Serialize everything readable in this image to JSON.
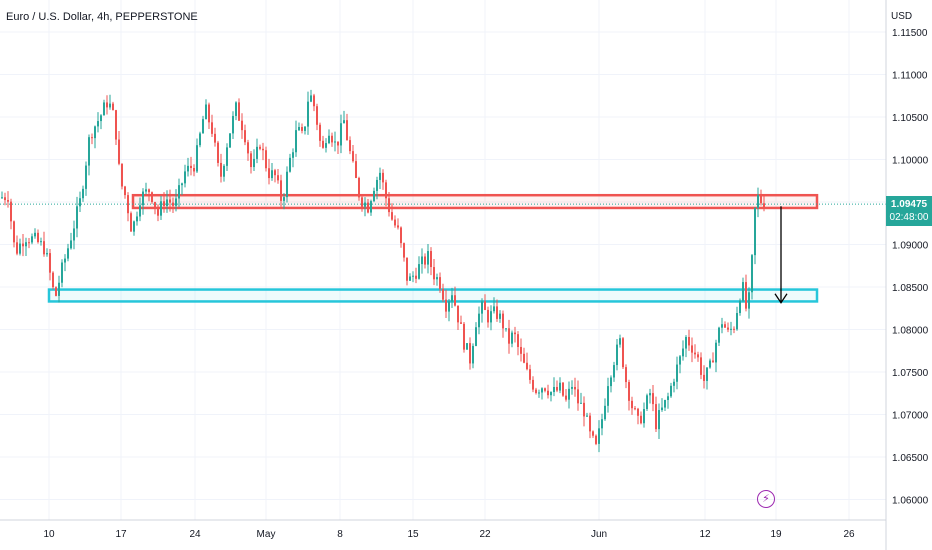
{
  "header": {
    "symbol_title": "Euro / U.S. Dollar, 4h, PEPPERSTONE",
    "currency": "USD"
  },
  "last_price": {
    "price": "1.09475",
    "countdown": "02:48:00",
    "color": "#26a69a"
  },
  "colors": {
    "up": "#26a69a",
    "down": "#ef5350",
    "resistance_zone": "#ef5350",
    "support_zone": "#26c6da",
    "grid": "#f0f3fa"
  },
  "icons": {
    "alert": "lightning-icon"
  },
  "chart_data": {
    "type": "candlestick",
    "timeframe": "4h",
    "y_ticks": [
      1.115,
      1.11,
      1.105,
      1.1,
      1.095,
      1.09,
      1.085,
      1.08,
      1.075,
      1.07,
      1.065,
      1.06
    ],
    "y_tick_labels": [
      "1.11500",
      "1.11000",
      "1.10500",
      "1.10000",
      "1.09500",
      "1.09000",
      "1.08500",
      "1.08000",
      "1.07500",
      "1.07000",
      "1.06500",
      "1.06000"
    ],
    "ylim": [
      1.0565,
      1.1175
    ],
    "x_ticks": [
      "10",
      "17",
      "24",
      "May",
      "8",
      "15",
      "22",
      "Jun",
      "12",
      "19",
      "26"
    ],
    "series_path": [
      [
        0,
        1.0955
      ],
      [
        8,
        1.0958
      ],
      [
        15,
        1.089
      ],
      [
        25,
        1.091
      ],
      [
        35,
        1.0905
      ],
      [
        45,
        1.0895
      ],
      [
        55,
        1.0835
      ],
      [
        60,
        1.0862
      ],
      [
        70,
        1.0905
      ],
      [
        80,
        1.095
      ],
      [
        90,
        1.103
      ],
      [
        100,
        1.105
      ],
      [
        108,
        1.107
      ],
      [
        115,
        1.1045
      ],
      [
        120,
        1.0975
      ],
      [
        126,
        1.0955
      ],
      [
        132,
        1.0915
      ],
      [
        140,
        1.0955
      ],
      [
        150,
        1.0965
      ],
      [
        158,
        1.0935
      ],
      [
        165,
        1.0955
      ],
      [
        175,
        1.0945
      ],
      [
        185,
        1.0985
      ],
      [
        195,
        1.0995
      ],
      [
        205,
        1.106
      ],
      [
        212,
        1.1035
      ],
      [
        220,
        1.0975
      ],
      [
        228,
        1.1025
      ],
      [
        236,
        1.106
      ],
      [
        244,
        1.1035
      ],
      [
        252,
        1.0985
      ],
      [
        260,
        1.102
      ],
      [
        268,
        1.0985
      ],
      [
        275,
        1.098
      ],
      [
        282,
        1.095
      ],
      [
        290,
        1.1
      ],
      [
        297,
        1.1035
      ],
      [
        303,
        1.1025
      ],
      [
        309,
        1.108
      ],
      [
        315,
        1.106
      ],
      [
        322,
        1.1005
      ],
      [
        328,
        1.104
      ],
      [
        336,
        1.1015
      ],
      [
        344,
        1.1045
      ],
      [
        352,
        1.0995
      ],
      [
        360,
        1.0955
      ],
      [
        368,
        1.0945
      ],
      [
        374,
        1.097
      ],
      [
        380,
        1.0985
      ],
      [
        386,
        1.0955
      ],
      [
        392,
        1.093
      ],
      [
        398,
        1.0915
      ],
      [
        404,
        1.088
      ],
      [
        408,
        1.0855
      ],
      [
        414,
        1.0865
      ],
      [
        420,
        1.0875
      ],
      [
        428,
        1.0885
      ],
      [
        434,
        1.0865
      ],
      [
        440,
        1.0855
      ],
      [
        446,
        1.083
      ],
      [
        452,
        1.0845
      ],
      [
        458,
        1.0815
      ],
      [
        464,
        1.0785
      ],
      [
        470,
        1.0765
      ],
      [
        476,
        1.081
      ],
      [
        482,
        1.0825
      ],
      [
        488,
        1.0815
      ],
      [
        496,
        1.082
      ],
      [
        502,
        1.081
      ],
      [
        508,
        1.0785
      ],
      [
        514,
        1.0795
      ],
      [
        520,
        1.077
      ],
      [
        528,
        1.0745
      ],
      [
        536,
        1.073
      ],
      [
        544,
        1.0735
      ],
      [
        552,
        1.0725
      ],
      [
        560,
        1.073
      ],
      [
        566,
        1.0715
      ],
      [
        572,
        1.0735
      ],
      [
        578,
        1.0715
      ],
      [
        584,
        1.0705
      ],
      [
        590,
        1.0675
      ],
      [
        596,
        1.066
      ],
      [
        602,
        1.0695
      ],
      [
        608,
        1.074
      ],
      [
        614,
        1.0765
      ],
      [
        620,
        1.0785
      ],
      [
        626,
        1.074
      ],
      [
        632,
        1.071
      ],
      [
        638,
        1.069
      ],
      [
        644,
        1.0705
      ],
      [
        650,
        1.0725
      ],
      [
        656,
        1.069
      ],
      [
        662,
        1.0705
      ],
      [
        668,
        1.072
      ],
      [
        674,
        1.0745
      ],
      [
        680,
        1.0765
      ],
      [
        686,
        1.079
      ],
      [
        692,
        1.078
      ],
      [
        698,
        1.0765
      ],
      [
        704,
        1.074
      ],
      [
        710,
        1.0755
      ],
      [
        716,
        1.0785
      ],
      [
        722,
        1.081
      ],
      [
        728,
        1.0795
      ],
      [
        734,
        1.0805
      ],
      [
        738,
        1.083
      ],
      [
        742,
        1.0855
      ],
      [
        746,
        1.0825
      ],
      [
        749,
        1.0835
      ],
      [
        752,
        1.088
      ],
      [
        755,
        1.094
      ],
      [
        758,
        1.0955
      ],
      [
        762,
        1.095
      ],
      [
        766,
        1.0948
      ]
    ],
    "zones": [
      {
        "name": "resistance",
        "y_top": 1.0958,
        "y_bottom": 1.0943,
        "x_from": "17",
        "x_to": "26"
      },
      {
        "name": "support",
        "y_top": 1.0847,
        "y_bottom": 1.0833,
        "x_from": "10",
        "x_to": "26"
      }
    ],
    "annotation": {
      "type": "arrow_down",
      "from": 1.0945,
      "to": 1.0835
    },
    "grid": true
  }
}
